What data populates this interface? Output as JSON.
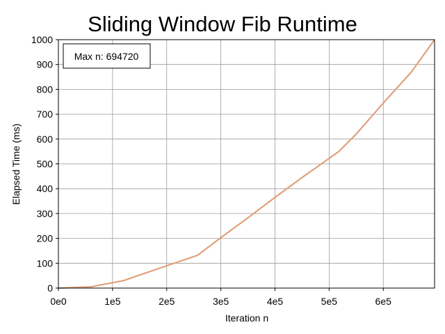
{
  "chart_data": {
    "type": "line",
    "title": "Sliding Window Fib Runtime",
    "xlabel": "Iteration n",
    "ylabel": "Elapsed Time (ms)",
    "xlim": [
      0,
      694720
    ],
    "ylim": [
      0,
      1000
    ],
    "x_ticks": [
      0,
      100000,
      200000,
      300000,
      400000,
      500000,
      600000
    ],
    "x_tick_labels": [
      "0e0",
      "1e5",
      "2e5",
      "3e5",
      "4e5",
      "5e5",
      "6e5"
    ],
    "y_ticks": [
      0,
      100,
      200,
      300,
      400,
      500,
      600,
      700,
      800,
      900,
      1000
    ],
    "y_tick_labels": [
      "0",
      "100",
      "200",
      "300",
      "400",
      "500",
      "600",
      "700",
      "800",
      "900",
      "1000"
    ],
    "grid": true,
    "annotation": "Max n: 694720",
    "annotation_position": "top-left",
    "series": [
      {
        "color": "#e0a07a",
        "x": [
          0,
          60000,
          120000,
          180000,
          257000,
          300000,
          350000,
          400000,
          450000,
          518000,
          550000,
          600000,
          652000,
          694720
        ],
        "y": [
          0,
          5,
          30,
          75,
          132,
          203,
          283,
          365,
          445,
          550,
          620,
          745,
          870,
          1000
        ]
      }
    ]
  }
}
